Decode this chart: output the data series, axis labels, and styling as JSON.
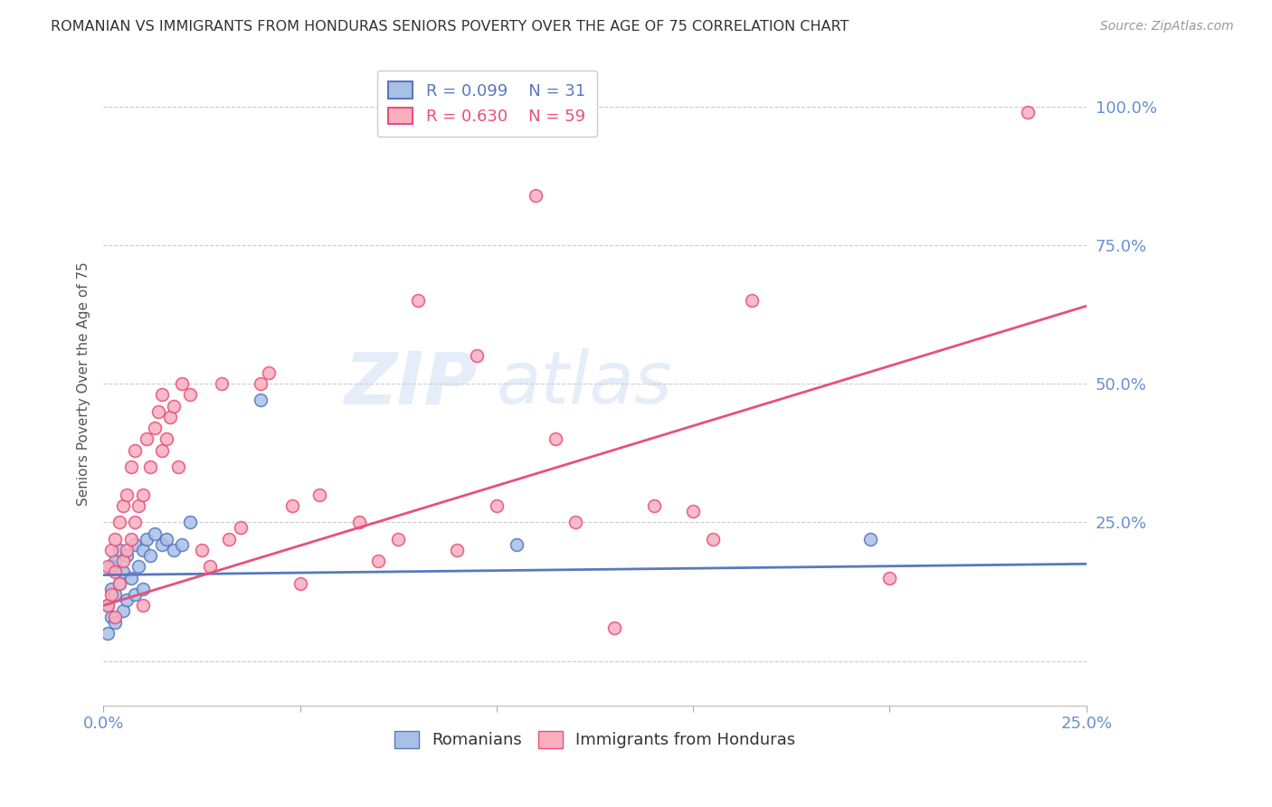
{
  "title": "ROMANIAN VS IMMIGRANTS FROM HONDURAS SENIORS POVERTY OVER THE AGE OF 75 CORRELATION CHART",
  "source": "Source: ZipAtlas.com",
  "ylabel": "Seniors Poverty Over the Age of 75",
  "xlim": [
    0.0,
    0.25
  ],
  "ylim": [
    -0.08,
    1.08
  ],
  "xticks": [
    0.0,
    0.05,
    0.1,
    0.15,
    0.2,
    0.25
  ],
  "xticklabels": [
    "0.0%",
    "",
    "",
    "",
    "",
    "25.0%"
  ],
  "yticks": [
    0.0,
    0.25,
    0.5,
    0.75,
    1.0
  ],
  "yticklabels": [
    "",
    "25.0%",
    "50.0%",
    "75.0%",
    "100.0%"
  ],
  "color_romanian": "#a8c0e8",
  "color_honduras": "#f8b0c0",
  "line_color_romanian": "#5878c0",
  "line_color_honduras": "#e8507a",
  "grid_color": "#cccccc",
  "title_color": "#333333",
  "axis_color": "#6890d0",
  "romanians_x": [
    0.001,
    0.001,
    0.002,
    0.002,
    0.002,
    0.003,
    0.003,
    0.003,
    0.004,
    0.004,
    0.005,
    0.005,
    0.006,
    0.006,
    0.007,
    0.008,
    0.008,
    0.009,
    0.01,
    0.01,
    0.011,
    0.012,
    0.013,
    0.015,
    0.016,
    0.018,
    0.02,
    0.022,
    0.04,
    0.105,
    0.195
  ],
  "romanians_y": [
    0.05,
    0.1,
    0.08,
    0.13,
    0.17,
    0.07,
    0.12,
    0.18,
    0.14,
    0.2,
    0.09,
    0.16,
    0.11,
    0.19,
    0.15,
    0.12,
    0.21,
    0.17,
    0.13,
    0.2,
    0.22,
    0.19,
    0.23,
    0.21,
    0.22,
    0.2,
    0.21,
    0.25,
    0.47,
    0.21,
    0.22
  ],
  "honduras_x": [
    0.001,
    0.001,
    0.002,
    0.002,
    0.003,
    0.003,
    0.003,
    0.004,
    0.004,
    0.005,
    0.005,
    0.006,
    0.006,
    0.007,
    0.007,
    0.008,
    0.008,
    0.009,
    0.01,
    0.01,
    0.011,
    0.012,
    0.013,
    0.014,
    0.015,
    0.015,
    0.016,
    0.017,
    0.018,
    0.019,
    0.02,
    0.022,
    0.025,
    0.027,
    0.03,
    0.032,
    0.035,
    0.04,
    0.042,
    0.048,
    0.05,
    0.055,
    0.065,
    0.07,
    0.075,
    0.08,
    0.09,
    0.095,
    0.1,
    0.11,
    0.115,
    0.12,
    0.13,
    0.14,
    0.15,
    0.155,
    0.165,
    0.2,
    0.235
  ],
  "honduras_y": [
    0.1,
    0.17,
    0.12,
    0.2,
    0.08,
    0.16,
    0.22,
    0.14,
    0.25,
    0.18,
    0.28,
    0.2,
    0.3,
    0.22,
    0.35,
    0.25,
    0.38,
    0.28,
    0.1,
    0.3,
    0.4,
    0.35,
    0.42,
    0.45,
    0.38,
    0.48,
    0.4,
    0.44,
    0.46,
    0.35,
    0.5,
    0.48,
    0.2,
    0.17,
    0.5,
    0.22,
    0.24,
    0.5,
    0.52,
    0.28,
    0.14,
    0.3,
    0.25,
    0.18,
    0.22,
    0.65,
    0.2,
    0.55,
    0.28,
    0.84,
    0.4,
    0.25,
    0.06,
    0.28,
    0.27,
    0.22,
    0.65,
    0.15,
    0.99
  ],
  "rom_trend_x": [
    0.0,
    0.25
  ],
  "rom_trend_y": [
    0.155,
    0.175
  ],
  "hon_trend_x": [
    0.0,
    0.25
  ],
  "hon_trend_y": [
    0.1,
    0.64
  ]
}
